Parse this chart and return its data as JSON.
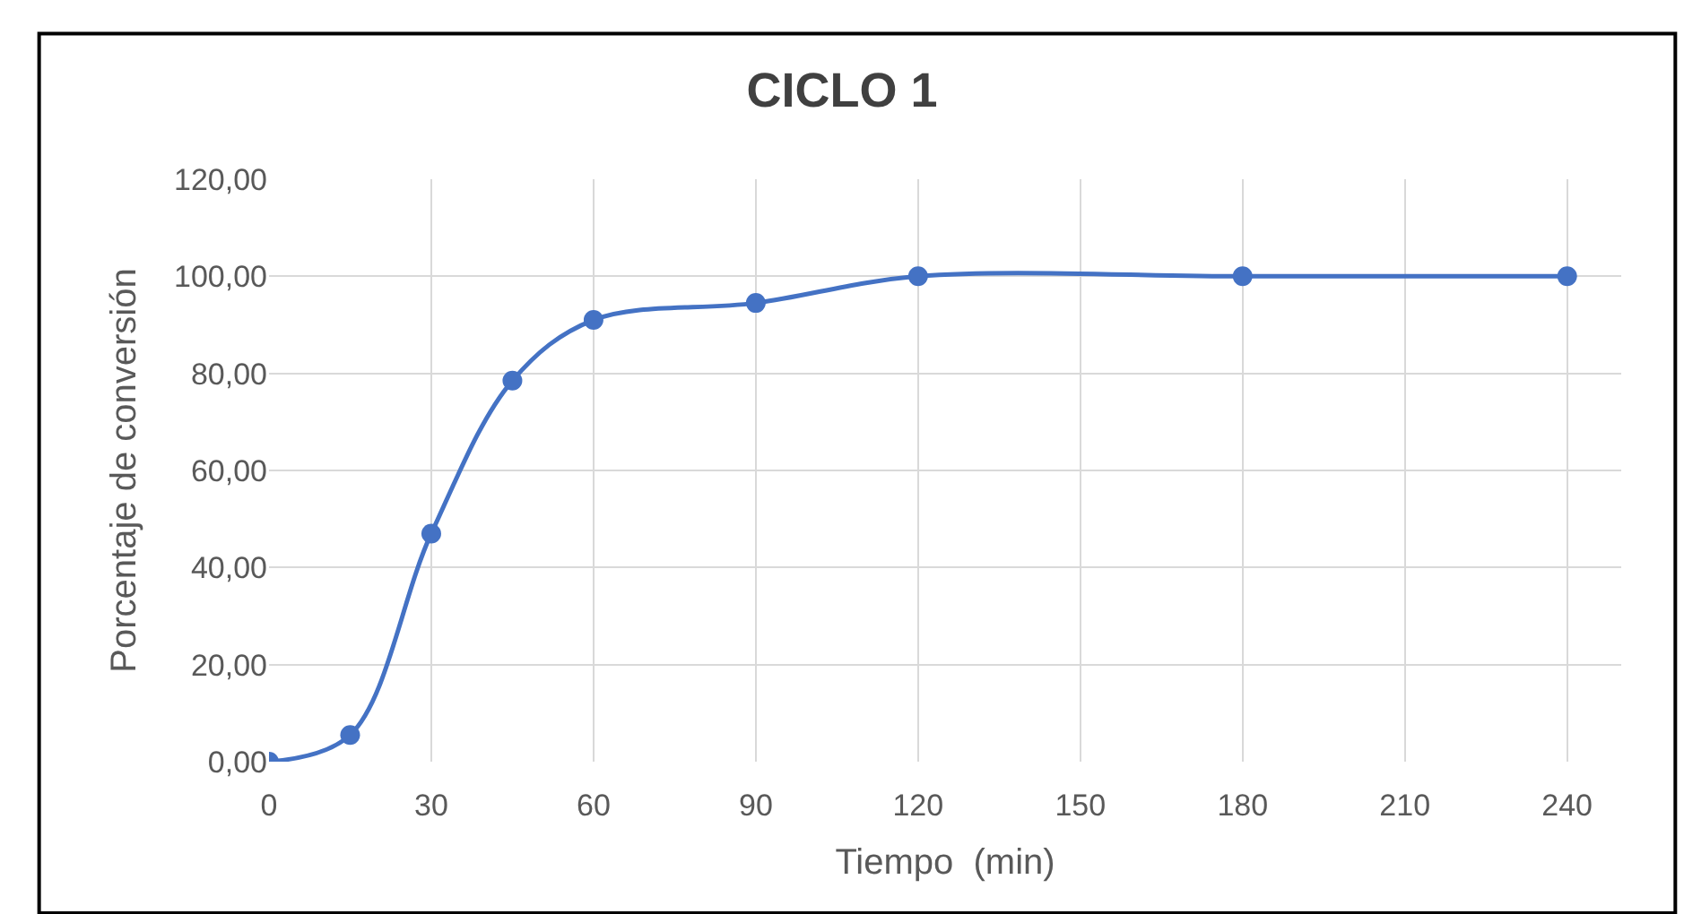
{
  "chart_data": {
    "type": "line",
    "title": "CICLO 1",
    "xlabel": "Tiempo  (min)",
    "ylabel": "Porcentaje de conversión",
    "x": [
      0,
      15,
      30,
      45,
      60,
      90,
      120,
      180,
      240
    ],
    "series": [
      {
        "color": "#4472c4",
        "values": [
          0,
          5.5,
          47,
          78.5,
          91,
          94.5,
          100,
          100,
          100
        ]
      }
    ],
    "xlim": [
      0,
      250
    ],
    "xticks": [
      0,
      30,
      60,
      90,
      120,
      150,
      180,
      210,
      240
    ],
    "ylim": [
      0,
      120
    ],
    "yticks": [
      {
        "value": 0,
        "label": "0,00"
      },
      {
        "value": 20,
        "label": "20,00"
      },
      {
        "value": 40,
        "label": "40,00"
      },
      {
        "value": 60,
        "label": "60,00"
      },
      {
        "value": 80,
        "label": "80,00"
      },
      {
        "value": 100,
        "label": "100,00"
      },
      {
        "value": 120,
        "label": "120,00"
      }
    ],
    "grid": true,
    "marker": "circle",
    "line_style": "solid"
  }
}
